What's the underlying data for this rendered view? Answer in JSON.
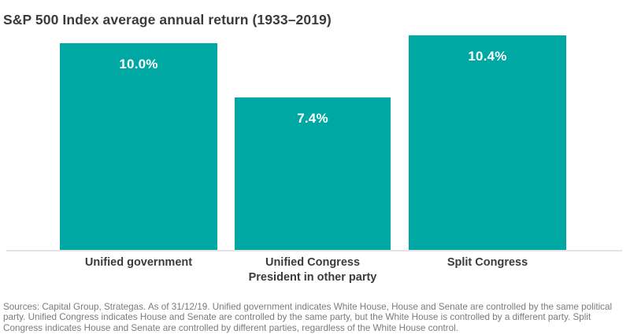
{
  "chart_data": {
    "type": "bar",
    "title": "S&P 500 Index average annual return (1933–2019)",
    "categories": [
      "Unified government",
      "Unified Congress\nPresident in other party",
      "Split Congress"
    ],
    "values": [
      10.0,
      7.4,
      10.4
    ],
    "value_labels": [
      "10.0%",
      "7.4%",
      "10.4%"
    ],
    "xlabel": "",
    "ylabel": "",
    "ylim": [
      0,
      10.8
    ],
    "grid": false,
    "legend": "none",
    "bar_color": "#00A8A4",
    "value_label_color": "#ffffff",
    "category_label_color": "#3b3b3b",
    "axis_line_color": "#e4e4e4",
    "title_color": "#3b3b3b"
  },
  "footnote": {
    "text": "Sources: Capital Group, Strategas. As of 31/12/19. Unified government indicates White House, House and Senate are controlled by the same political party. Unified Congress indicates House and Senate are controlled by the same party, but the White House is controlled by a different party. Split Congress indicates House and Senate are controlled by different parties, regardless of the White House control."
  }
}
